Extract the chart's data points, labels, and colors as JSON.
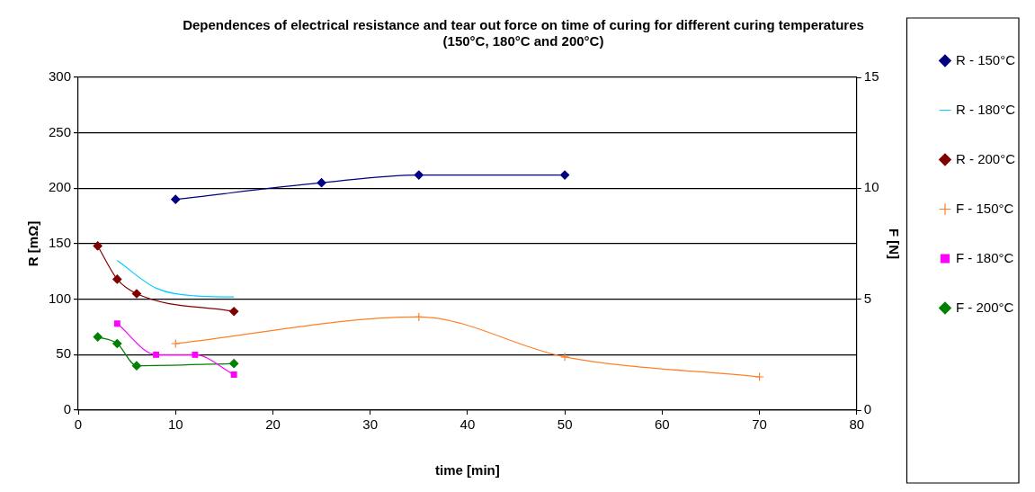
{
  "chart_data": {
    "type": "line",
    "title": "Dependences of electrical resistance and tear out force on time of curing for different curing temperatures (150°C, 180°C and 200°C)",
    "xlabel": "time [min]",
    "ylabel": "R [mΩ]",
    "y2label": "F [N]",
    "xlim": [
      0,
      80
    ],
    "xticks": [
      0,
      10,
      20,
      30,
      40,
      50,
      60,
      70,
      80
    ],
    "ylim": [
      0,
      300
    ],
    "yticks": [
      0,
      50,
      100,
      150,
      200,
      250,
      300
    ],
    "y2lim": [
      0,
      15
    ],
    "y2ticks": [
      0,
      5,
      10,
      15
    ],
    "grid": "y",
    "legend": "right",
    "line_style": "solid",
    "series": [
      {
        "name": "R - 150°C",
        "color": "#000080",
        "marker": "diamond",
        "x": [
          10,
          25,
          35,
          50
        ],
        "values": [
          190,
          205,
          212,
          212
        ]
      },
      {
        "name": "R - 180°C",
        "color": "#00ccff",
        "marker": "none",
        "x": [
          4,
          8,
          12,
          16
        ],
        "values": [
          135,
          110,
          103,
          102
        ]
      },
      {
        "name": "R - 200°C",
        "color": "#800000",
        "marker": "diamond",
        "x": [
          2,
          4,
          6,
          16
        ],
        "values": [
          148,
          118,
          105,
          89
        ]
      },
      {
        "name": "F - 150°C",
        "color": "#ff7f27",
        "marker": "cross",
        "axis": "y2",
        "x": [
          10,
          35,
          50,
          70
        ],
        "values": [
          3,
          4.2,
          2.4,
          1.5
        ]
      },
      {
        "name": "F - 180°C",
        "color": "#ff00ff",
        "marker": "square",
        "axis": "y2",
        "x": [
          4,
          8,
          12,
          16
        ],
        "values": [
          3.9,
          2.5,
          2.5,
          1.6
        ]
      },
      {
        "name": "F - 200°C",
        "color": "#008000",
        "marker": "diamond",
        "axis": "y2",
        "x": [
          2,
          4,
          6,
          16
        ],
        "values": [
          3.3,
          3,
          2,
          2.1
        ]
      }
    ]
  }
}
